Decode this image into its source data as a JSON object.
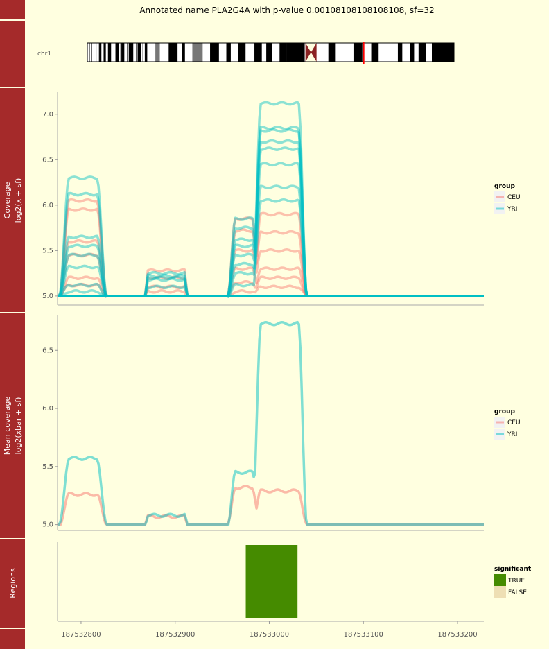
{
  "title": "Annotated name PLA2G4A with p-value 0.00108108108108108, sf=32",
  "colors": {
    "background": "#ffffe0",
    "strip": "#a52a2a",
    "ceu": "#f8766d",
    "yri": "#00bfc4",
    "sig_true": "#458b00",
    "sig_false": "#eedfb4",
    "highlight": "#ff0000"
  },
  "ideogram": {
    "chromosome": "chr1",
    "bands": [
      [
        0,
        8,
        "w"
      ],
      [
        8,
        9.5,
        "k"
      ],
      [
        9.5,
        11,
        "w"
      ],
      [
        11,
        12.5,
        "k"
      ],
      [
        12.5,
        14,
        "w"
      ],
      [
        14,
        16,
        "k"
      ],
      [
        16,
        19,
        "w"
      ],
      [
        19,
        21,
        "k"
      ],
      [
        21,
        23,
        "w"
      ],
      [
        23,
        25,
        "k"
      ],
      [
        25,
        28,
        "w"
      ],
      [
        28,
        31,
        "k"
      ],
      [
        31,
        34,
        "w"
      ],
      [
        34,
        36,
        "k"
      ],
      [
        36,
        39,
        "w"
      ],
      [
        39,
        40.5,
        "k"
      ],
      [
        40.5,
        46,
        "w"
      ],
      [
        46,
        49,
        "g"
      ],
      [
        49,
        55,
        "w"
      ],
      [
        55,
        61,
        "k"
      ],
      [
        61,
        64,
        "w"
      ],
      [
        64,
        66,
        "k"
      ],
      [
        66,
        71,
        "w"
      ],
      [
        71,
        78,
        "g"
      ],
      [
        78,
        83,
        "w"
      ],
      [
        83,
        89,
        "k"
      ],
      [
        89,
        94,
        "w"
      ],
      [
        94,
        97,
        "k"
      ],
      [
        97,
        102,
        "w"
      ],
      [
        102,
        107,
        "k"
      ],
      [
        107,
        113,
        "w"
      ],
      [
        113,
        118,
        "k"
      ],
      [
        118,
        121,
        "w"
      ],
      [
        121,
        125,
        "k"
      ],
      [
        125,
        130,
        "w"
      ],
      [
        130,
        135,
        "k"
      ],
      [
        135,
        147,
        "k"
      ],
      [
        147,
        149,
        "w"
      ],
      [
        149,
        151,
        "k"
      ],
      [
        151,
        148,
        "c"
      ],
      [
        151,
        155,
        "c"
      ],
      [
        155,
        160,
        "w"
      ],
      [
        160,
        163,
        "w"
      ],
      [
        163,
        168,
        "k"
      ],
      [
        168,
        175,
        "w"
      ],
      [
        175,
        180,
        "w"
      ],
      [
        180,
        186,
        "k"
      ],
      [
        186,
        192,
        "w"
      ],
      [
        192,
        197,
        "k"
      ],
      [
        197,
        201,
        "w"
      ],
      [
        201,
        210,
        "w"
      ],
      [
        210,
        213,
        "k"
      ],
      [
        213,
        218,
        "w"
      ],
      [
        218,
        221,
        "k"
      ],
      [
        221,
        224,
        "w"
      ],
      [
        224,
        229,
        "k"
      ],
      [
        229,
        233,
        "w"
      ],
      [
        233,
        248,
        "k"
      ]
    ],
    "highlight_position": 187533000,
    "chromosome_length": 249000000
  },
  "chart_data": [
    {
      "type": "line",
      "panel": "Coverage",
      "ylabel": [
        "Coverage",
        "log2(x + sf)"
      ],
      "yticks": [
        5.0,
        5.5,
        6.0,
        6.5,
        7.0
      ],
      "ylim": [
        4.9,
        7.25
      ],
      "legend": {
        "title": "group",
        "entries": [
          "CEU",
          "YRI"
        ]
      },
      "series": [
        {
          "name": "YRI",
          "peaks": [
            6.3,
            5.25,
            5.85,
            7.12
          ]
        },
        {
          "name": "YRI",
          "peaks": [
            6.12,
            5.0,
            5.75,
            6.85
          ]
        },
        {
          "name": "YRI",
          "peaks": [
            5.65,
            5.2,
            5.62,
            6.82
          ]
        },
        {
          "name": "YRI",
          "peaks": [
            5.55,
            5.1,
            5.55,
            6.62
          ]
        },
        {
          "name": "YRI",
          "peaks": [
            5.45,
            5.0,
            5.45,
            6.45
          ]
        },
        {
          "name": "YRI",
          "peaks": [
            5.32,
            5.22,
            5.35,
            6.2
          ]
        },
        {
          "name": "YRI",
          "peaks": [
            5.12,
            5.0,
            5.25,
            6.7
          ]
        },
        {
          "name": "YRI",
          "peaks": [
            5.05,
            5.18,
            5.12,
            6.05
          ]
        },
        {
          "name": "CEU",
          "peaks": [
            6.05,
            5.28,
            5.85,
            5.9
          ]
        },
        {
          "name": "CEU",
          "peaks": [
            5.95,
            5.0,
            5.72,
            5.7
          ]
        },
        {
          "name": "CEU",
          "peaks": [
            5.6,
            5.2,
            5.5,
            5.5
          ]
        },
        {
          "name": "CEU",
          "peaks": [
            5.45,
            5.1,
            5.3,
            5.3
          ]
        },
        {
          "name": "CEU",
          "peaks": [
            5.2,
            5.0,
            5.15,
            5.2
          ]
        },
        {
          "name": "CEU",
          "peaks": [
            5.12,
            5.05,
            5.05,
            5.1
          ]
        }
      ]
    },
    {
      "type": "line",
      "panel": "Mean coverage",
      "ylabel": [
        "Mean coverage",
        "log2(xbar + sf)"
      ],
      "yticks": [
        5.0,
        5.5,
        6.0,
        6.5
      ],
      "ylim": [
        4.95,
        6.8
      ],
      "legend": {
        "title": "group",
        "entries": [
          "CEU",
          "YRI"
        ]
      },
      "series": [
        {
          "name": "YRI",
          "peaks": [
            5.57,
            5.08,
            5.45,
            6.73
          ]
        },
        {
          "name": "CEU",
          "peaks": [
            5.26,
            5.07,
            5.32,
            5.29
          ]
        }
      ]
    },
    {
      "type": "bar",
      "panel": "Regions",
      "legend": {
        "title": "significant",
        "entries": [
          "TRUE",
          "FALSE"
        ]
      },
      "regions": [
        {
          "start": 187532975,
          "end": 187533030,
          "significant": "TRUE"
        }
      ]
    }
  ],
  "x_axis": {
    "ticks": [
      187532800,
      187532900,
      187533000,
      187533100,
      187533200
    ],
    "tick_labels": [
      "187532800",
      "187532900",
      "187533000",
      "187533100",
      "187533200"
    ],
    "xlim": [
      187532775,
      187533228
    ]
  },
  "strip_labels": {
    "coverage": [
      "Coverage",
      "log2(x + sf)"
    ],
    "mean": [
      "Mean coverage",
      "log2(xbar + sf)"
    ],
    "regions": "Regions"
  }
}
